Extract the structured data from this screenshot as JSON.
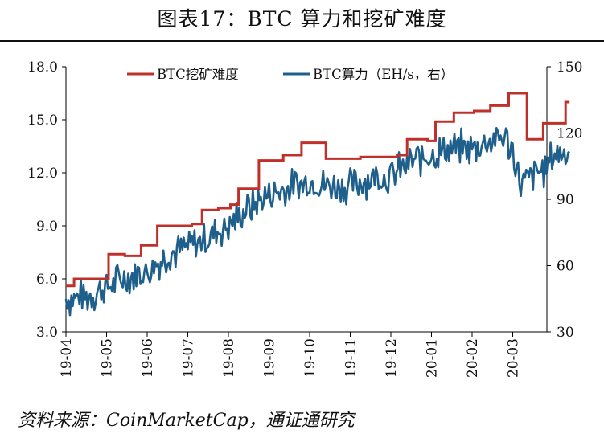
{
  "title": "图表17：BTC 算力和挖矿难度",
  "source": "资料来源：CoinMarketCap，通证通研究",
  "chart_data": {
    "type": "line",
    "x_tick_labels": [
      "19-04",
      "19-05",
      "19-06",
      "19-07",
      "19-08",
      "19-09",
      "19-10",
      "19-11",
      "19-12",
      "20-01",
      "20-02",
      "20-03"
    ],
    "left_axis": {
      "min": 3.0,
      "max": 18.0,
      "ticks": [
        "3.0",
        "6.0",
        "9.0",
        "12.0",
        "15.0",
        "18.0"
      ]
    },
    "right_axis": {
      "min": 30,
      "max": 150,
      "ticks": [
        "30",
        "60",
        "90",
        "120",
        "150"
      ]
    },
    "series": [
      {
        "name": "BTC挖矿难度",
        "axis": "left",
        "color": "#c0302b",
        "steps": [
          [
            0.0,
            5.6
          ],
          [
            0.2,
            6.0
          ],
          [
            1.05,
            7.4
          ],
          [
            1.45,
            7.3
          ],
          [
            1.85,
            7.9
          ],
          [
            2.05,
            7.9
          ],
          [
            2.25,
            9.0
          ],
          [
            2.65,
            9.0
          ],
          [
            3.1,
            9.1
          ],
          [
            3.35,
            9.9
          ],
          [
            3.75,
            10.0
          ],
          [
            4.05,
            10.2
          ],
          [
            4.25,
            11.1
          ],
          [
            4.75,
            12.7
          ],
          [
            5.35,
            13.0
          ],
          [
            5.8,
            13.7
          ],
          [
            6.4,
            12.8
          ],
          [
            6.9,
            12.8
          ],
          [
            7.25,
            12.9
          ],
          [
            8.15,
            13.0
          ],
          [
            8.4,
            13.9
          ],
          [
            8.9,
            13.8
          ],
          [
            9.1,
            14.9
          ],
          [
            9.55,
            15.4
          ],
          [
            10.05,
            15.5
          ],
          [
            10.45,
            15.8
          ],
          [
            10.9,
            16.5
          ],
          [
            11.35,
            13.9
          ],
          [
            11.75,
            14.8
          ],
          [
            12.3,
            16.0
          ],
          [
            12.4,
            16.0
          ]
        ]
      },
      {
        "name": "BTC算力（EH/s，右）",
        "axis": "right",
        "color": "#1f5f8b",
        "anchors": [
          [
            0.0,
            45
          ],
          [
            0.5,
            46
          ],
          [
            1.0,
            50
          ],
          [
            1.5,
            55
          ],
          [
            2.0,
            57
          ],
          [
            2.5,
            65
          ],
          [
            3.0,
            68
          ],
          [
            3.5,
            73
          ],
          [
            4.0,
            78
          ],
          [
            4.5,
            86
          ],
          [
            5.0,
            92
          ],
          [
            5.5,
            95
          ],
          [
            6.0,
            98
          ],
          [
            6.5,
            96
          ],
          [
            7.0,
            96
          ],
          [
            7.5,
            100
          ],
          [
            8.0,
            100
          ],
          [
            8.5,
            107
          ],
          [
            9.0,
            110
          ],
          [
            9.5,
            113
          ],
          [
            10.0,
            113
          ],
          [
            10.5,
            117
          ],
          [
            10.8,
            118
          ],
          [
            11.0,
            112
          ],
          [
            11.2,
            96
          ],
          [
            11.5,
            101
          ],
          [
            11.8,
            104
          ],
          [
            12.0,
            110
          ],
          [
            12.4,
            112
          ]
        ],
        "noise_amplitude": 8
      }
    ],
    "legend_position": "top"
  }
}
